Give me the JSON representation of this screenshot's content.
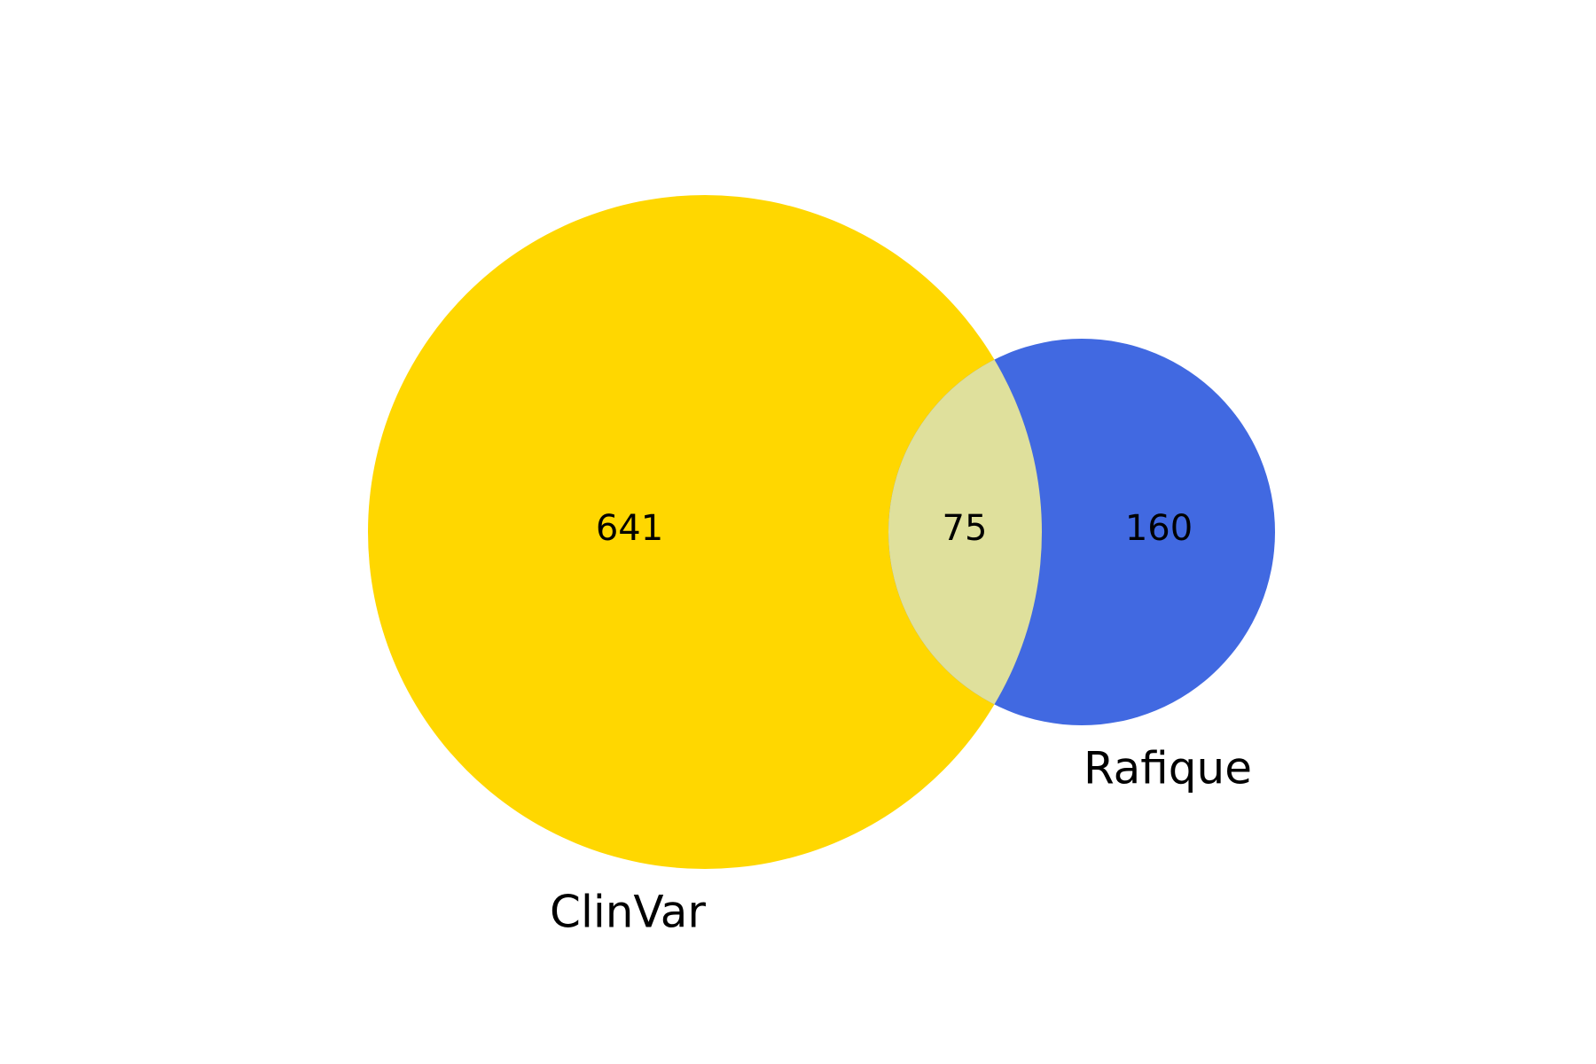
{
  "diagram": {
    "type": "venn2",
    "sets": [
      {
        "id": "A",
        "label": "ClinVar",
        "only_count": "641",
        "color": "#FFD700"
      },
      {
        "id": "B",
        "label": "Rafique",
        "only_count": "160",
        "color": "#4169E1"
      }
    ],
    "intersection": {
      "count": "75",
      "color": "#DFE09C"
    }
  }
}
